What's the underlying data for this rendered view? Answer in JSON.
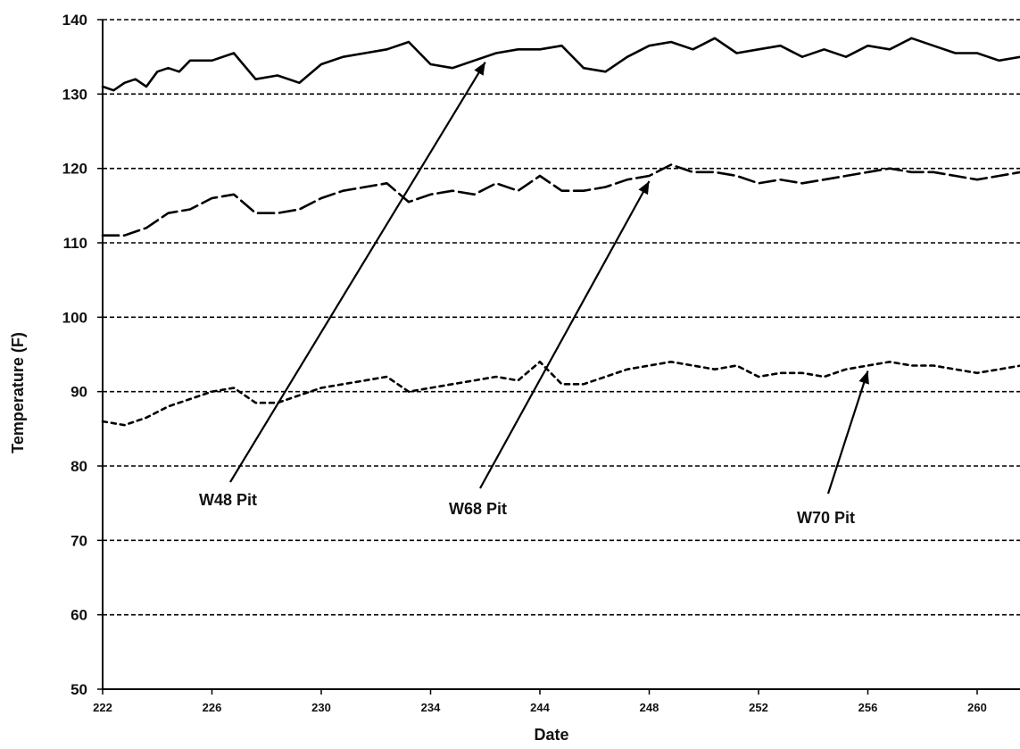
{
  "chart_data": {
    "type": "line",
    "title": "",
    "xlabel": "Date",
    "ylabel": "Temperature (F)",
    "ylim": [
      50,
      140
    ],
    "yticks": [
      50,
      60,
      70,
      80,
      90,
      100,
      110,
      120,
      130,
      140
    ],
    "x_tick_labels": [
      "222",
      "226",
      "230",
      "234",
      "244",
      "248",
      "252",
      "256",
      "260"
    ],
    "grid": "horizontal dashed",
    "legend": "none",
    "series": [
      {
        "name": "W48 Pit",
        "style": "solid",
        "color": "#000000",
        "x": [
          0,
          0.1,
          0.2,
          0.3,
          0.4,
          0.5,
          0.6,
          0.7,
          0.8,
          1.0,
          1.2,
          1.4,
          1.6,
          1.8,
          2.0,
          2.2,
          2.4,
          2.6,
          2.8,
          3.0,
          3.2,
          3.4,
          3.6,
          3.8,
          4.0,
          4.2,
          4.4,
          4.6,
          4.8,
          5.0,
          5.2,
          5.4,
          5.6,
          5.8,
          6.0,
          6.2,
          6.4,
          6.6,
          6.8,
          7.0,
          7.2,
          7.4,
          7.6,
          7.8,
          8.0,
          8.2,
          8.4,
          8.6,
          8.8,
          9.0
        ],
        "values": [
          131,
          130.5,
          131.5,
          132,
          131,
          133,
          133.5,
          133,
          134.5,
          134.5,
          135.5,
          132,
          132.5,
          131.5,
          134,
          135,
          135.5,
          136,
          137,
          134,
          133.5,
          134.5,
          135.5,
          136,
          136,
          136.5,
          133.5,
          133,
          135,
          136.5,
          137,
          136,
          137.5,
          135.5,
          136,
          136.5,
          135,
          136,
          135,
          136.5,
          136,
          137.5,
          136.5,
          135.5,
          135.5,
          134.5,
          135,
          135.5,
          136.5,
          137
        ]
      },
      {
        "name": "W68 Pit",
        "style": "long dash",
        "color": "#000000",
        "x": [
          0,
          0.2,
          0.4,
          0.6,
          0.8,
          1.0,
          1.2,
          1.4,
          1.6,
          1.8,
          2.0,
          2.2,
          2.4,
          2.6,
          2.8,
          3.0,
          3.2,
          3.4,
          3.6,
          3.8,
          4.0,
          4.2,
          4.4,
          4.6,
          4.8,
          5.0,
          5.2,
          5.4,
          5.6,
          5.8,
          6.0,
          6.2,
          6.4,
          6.6,
          6.8,
          7.0,
          7.2,
          7.4,
          7.6,
          7.8,
          8.0,
          8.2,
          8.4,
          8.6,
          8.8,
          9.0
        ],
        "values": [
          111,
          111,
          112,
          114,
          114.5,
          116,
          116.5,
          114,
          114,
          114.5,
          116,
          117,
          117.5,
          118,
          115.5,
          116.5,
          117,
          116.5,
          118,
          117,
          119,
          117,
          117,
          117.5,
          118.5,
          119,
          120.5,
          119.5,
          119.5,
          119,
          118,
          118.5,
          118,
          118.5,
          119,
          119.5,
          120,
          119.5,
          119.5,
          119,
          118.5,
          119,
          119.5,
          119,
          119.5,
          120
        ]
      },
      {
        "name": "W70 Pit",
        "style": "short dash",
        "color": "#000000",
        "x": [
          0,
          0.2,
          0.4,
          0.6,
          0.8,
          1.0,
          1.2,
          1.4,
          1.6,
          1.8,
          2.0,
          2.2,
          2.4,
          2.6,
          2.8,
          3.0,
          3.2,
          3.4,
          3.6,
          3.8,
          4.0,
          4.2,
          4.4,
          4.6,
          4.8,
          5.0,
          5.2,
          5.4,
          5.6,
          5.8,
          6.0,
          6.2,
          6.4,
          6.6,
          6.8,
          7.0,
          7.2,
          7.4,
          7.6,
          7.8,
          8.0,
          8.2,
          8.4,
          8.6,
          8.8,
          9.0
        ],
        "values": [
          86,
          85.5,
          86.5,
          88,
          89,
          90,
          90.5,
          88.5,
          88.5,
          89.5,
          90.5,
          91,
          91.5,
          92,
          90,
          90.5,
          91,
          91.5,
          92,
          91.5,
          94,
          91,
          91,
          92,
          93,
          93.5,
          94,
          93.5,
          93,
          93.5,
          92,
          92.5,
          92.5,
          92,
          93,
          93.5,
          94,
          93.5,
          93.5,
          93,
          92.5,
          93,
          93.5,
          93,
          93.5,
          94
        ]
      }
    ],
    "annotations": [
      {
        "text": "W48 Pit",
        "points_to_series": "W48 Pit"
      },
      {
        "text": "W68 Pit",
        "points_to_series": "W68 Pit"
      },
      {
        "text": "W70 Pit",
        "points_to_series": "W70 Pit"
      }
    ]
  }
}
